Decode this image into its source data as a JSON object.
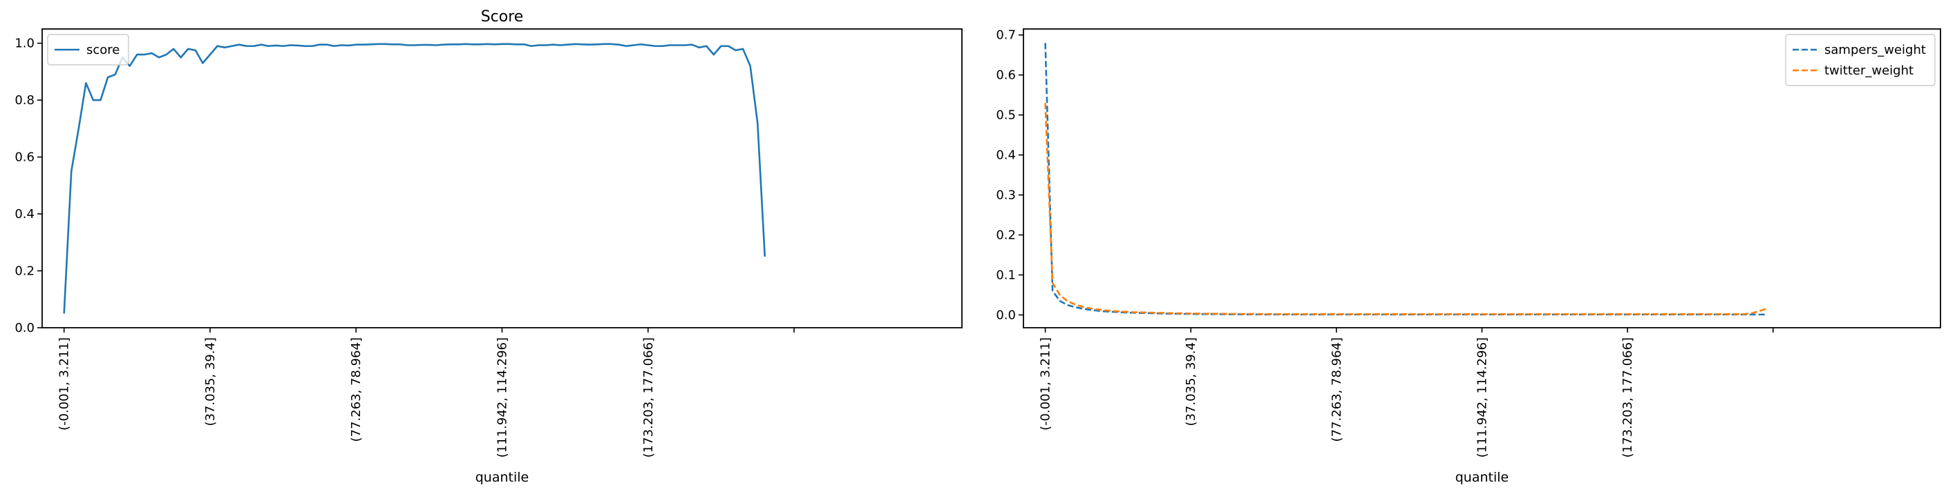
{
  "chart_data": [
    {
      "type": "line",
      "title": "Score",
      "xlabel": "quantile",
      "ylabel": "",
      "ylim": [
        0.0,
        1.05
      ],
      "yticks": [
        0.0,
        0.2,
        0.4,
        0.6,
        0.8,
        1.0
      ],
      "ytick_labels": [
        "0.0",
        "0.2",
        "0.4",
        "0.6",
        "0.8",
        "1.0"
      ],
      "xtick_positions": [
        0,
        20,
        40,
        60,
        80,
        100
      ],
      "xtick_labels": [
        "(-0.001, 3.211]",
        "(37.035, 39.4]",
        "(77.263, 78.964]",
        "(111.942, 114.296]",
        "(173.203, 177.066]",
        ""
      ],
      "grid": false,
      "legend": "upper-left",
      "series": [
        {
          "name": "score",
          "color": "#1f77b4",
          "dash": "solid",
          "values": [
            0.05,
            0.55,
            0.7,
            0.86,
            0.8,
            0.8,
            0.88,
            0.89,
            0.95,
            0.92,
            0.96,
            0.96,
            0.965,
            0.95,
            0.96,
            0.98,
            0.95,
            0.98,
            0.975,
            0.93,
            0.96,
            0.99,
            0.985,
            0.99,
            0.995,
            0.99,
            0.99,
            0.995,
            0.99,
            0.992,
            0.99,
            0.993,
            0.992,
            0.99,
            0.99,
            0.995,
            0.995,
            0.99,
            0.993,
            0.992,
            0.995,
            0.995,
            0.996,
            0.997,
            0.997,
            0.996,
            0.996,
            0.993,
            0.993,
            0.994,
            0.994,
            0.993,
            0.995,
            0.996,
            0.996,
            0.997,
            0.996,
            0.996,
            0.997,
            0.996,
            0.997,
            0.997,
            0.996,
            0.996,
            0.99,
            0.993,
            0.993,
            0.995,
            0.993,
            0.995,
            0.997,
            0.996,
            0.995,
            0.996,
            0.997,
            0.997,
            0.995,
            0.99,
            0.993,
            0.996,
            0.993,
            0.99,
            0.99,
            0.993,
            0.993,
            0.993,
            0.995,
            0.985,
            0.99,
            0.96,
            0.99,
            0.99,
            0.975,
            0.98,
            0.92,
            0.72,
            0.25
          ]
        }
      ]
    },
    {
      "type": "line",
      "title": "",
      "xlabel": "quantile",
      "ylabel": "",
      "ylim": [
        -0.032,
        0.715
      ],
      "yticks": [
        0.0,
        0.1,
        0.2,
        0.3,
        0.4,
        0.5,
        0.6,
        0.7
      ],
      "ytick_labels": [
        "0.0",
        "0.1",
        "0.2",
        "0.3",
        "0.4",
        "0.5",
        "0.6",
        "0.7"
      ],
      "xtick_positions": [
        0,
        20,
        40,
        60,
        80,
        100
      ],
      "xtick_labels": [
        "(-0.001, 3.211]",
        "(37.035, 39.4]",
        "(77.263, 78.964]",
        "(111.942, 114.296]",
        "(173.203, 177.066]",
        ""
      ],
      "grid": false,
      "legend": "upper-right",
      "series": [
        {
          "name": "sampers_weight",
          "color": "#1f77b4",
          "dash": "dashed",
          "values": [
            0.68,
            0.06,
            0.035,
            0.025,
            0.02,
            0.016,
            0.013,
            0.011,
            0.009,
            0.008,
            0.007,
            0.006,
            0.0055,
            0.005,
            0.0045,
            0.004,
            0.0035,
            0.003,
            0.003,
            0.0025,
            0.0025,
            0.002,
            0.002,
            0.002,
            0.0018,
            0.0016,
            0.0015,
            0.0014,
            0.0013,
            0.0012,
            0.0012,
            0.0011,
            0.001,
            0.001,
            0.001,
            0.001,
            0.001,
            0.001,
            0.001,
            0.001,
            0.001,
            0.001,
            0.001,
            0.001,
            0.001,
            0.001,
            0.001,
            0.001,
            0.001,
            0.001,
            0.001,
            0.001,
            0.001,
            0.001,
            0.001,
            0.001,
            0.001,
            0.001,
            0.001,
            0.001,
            0.001,
            0.001,
            0.001,
            0.001,
            0.001,
            0.001,
            0.001,
            0.001,
            0.001,
            0.001,
            0.001,
            0.001,
            0.001,
            0.001,
            0.001,
            0.001,
            0.001,
            0.001,
            0.001,
            0.001,
            0.001,
            0.001,
            0.001,
            0.001,
            0.001,
            0.001,
            0.001,
            0.001,
            0.001,
            0.001,
            0.001,
            0.001,
            0.001,
            0.001,
            0.001,
            0.001,
            0.001,
            0.001,
            0.001,
            0.001
          ]
        },
        {
          "name": "twitter_weight",
          "color": "#ff7f0e",
          "dash": "dashed",
          "values": [
            0.53,
            0.08,
            0.05,
            0.035,
            0.027,
            0.021,
            0.017,
            0.014,
            0.012,
            0.01,
            0.009,
            0.008,
            0.007,
            0.0065,
            0.006,
            0.0055,
            0.005,
            0.0045,
            0.004,
            0.004,
            0.0035,
            0.0035,
            0.003,
            0.003,
            0.003,
            0.0028,
            0.0026,
            0.0025,
            0.0024,
            0.0023,
            0.0022,
            0.0021,
            0.002,
            0.002,
            0.002,
            0.002,
            0.002,
            0.002,
            0.002,
            0.002,
            0.002,
            0.002,
            0.002,
            0.002,
            0.002,
            0.002,
            0.002,
            0.002,
            0.002,
            0.002,
            0.002,
            0.002,
            0.002,
            0.002,
            0.002,
            0.002,
            0.002,
            0.002,
            0.002,
            0.002,
            0.002,
            0.002,
            0.002,
            0.002,
            0.002,
            0.002,
            0.002,
            0.002,
            0.002,
            0.002,
            0.002,
            0.002,
            0.002,
            0.002,
            0.002,
            0.002,
            0.002,
            0.002,
            0.002,
            0.002,
            0.002,
            0.002,
            0.002,
            0.002,
            0.002,
            0.002,
            0.002,
            0.002,
            0.002,
            0.002,
            0.002,
            0.002,
            0.002,
            0.002,
            0.002,
            0.002,
            0.002,
            0.004,
            0.009,
            0.015
          ]
        }
      ]
    }
  ]
}
